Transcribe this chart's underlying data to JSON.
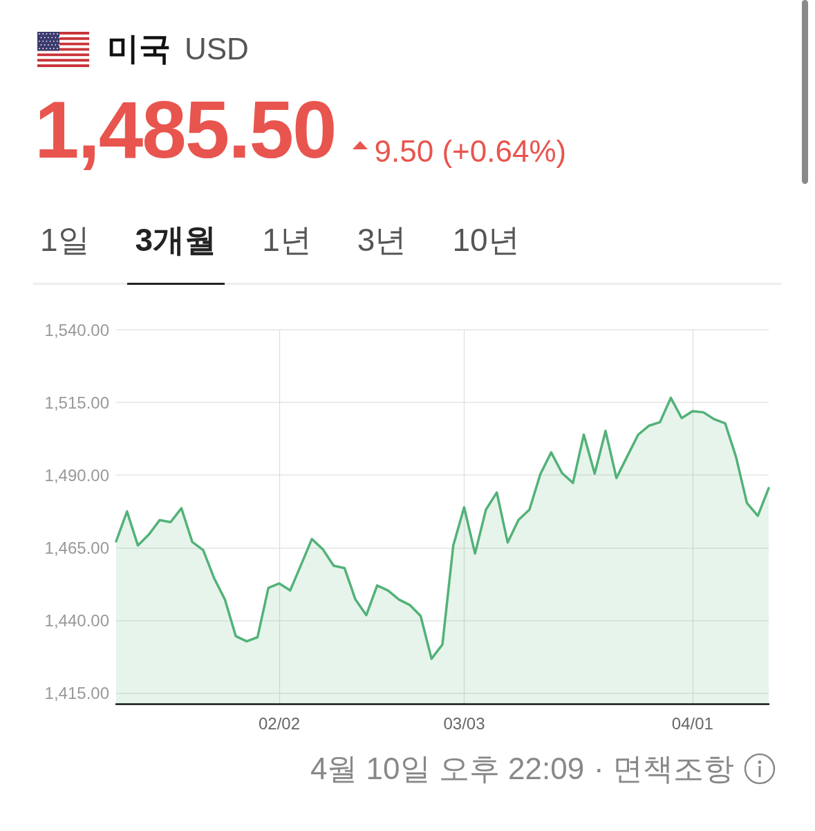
{
  "chart_data": {
    "type": "area",
    "title": "미국",
    "subtitle": "USD",
    "categories": [
      null,
      null,
      null,
      null,
      null,
      null,
      null,
      null,
      null,
      null,
      null,
      null,
      null,
      null,
      null,
      "02/02",
      null,
      null,
      null,
      null,
      null,
      null,
      null,
      null,
      null,
      null,
      null,
      null,
      null,
      null,
      null,
      null,
      "03/03",
      null,
      null,
      null,
      null,
      null,
      null,
      null,
      null,
      null,
      null,
      null,
      null,
      null,
      null,
      null,
      null,
      null,
      null,
      null,
      null,
      "04/01",
      null,
      null,
      null,
      null,
      null,
      null,
      null
    ],
    "values": [
      1467.2,
      1477.5,
      1465.8,
      1469.5,
      1474.5,
      1473.8,
      1478.6,
      1467.0,
      1464.2,
      1454.6,
      1447.2,
      1434.6,
      1432.8,
      1434.2,
      1451.2,
      1452.7,
      1450.3,
      1459.1,
      1468.0,
      1464.5,
      1458.8,
      1458.0,
      1447.2,
      1441.8,
      1452.0,
      1450.3,
      1447.2,
      1445.3,
      1441.5,
      1426.8,
      1431.7,
      1465.8,
      1478.9,
      1463.0,
      1478.1,
      1484.0,
      1466.8,
      1474.6,
      1478.1,
      1490.3,
      1497.8,
      1490.7,
      1487.3,
      1503.9,
      1490.5,
      1505.2,
      1489.0,
      1496.5,
      1503.9,
      1507.0,
      1508.2,
      1516.6,
      1509.6,
      1512.0,
      1511.6,
      1509.2,
      1507.8,
      1496.2,
      1480.4,
      1476.0,
      1485.5
    ],
    "color": "#52b278",
    "ylim": [
      1411.3,
      1540
    ],
    "yticks": [
      {
        "value": 1415,
        "label": "1,415.00"
      },
      {
        "value": 1440,
        "label": "1,440.00"
      },
      {
        "value": 1465,
        "label": "1,465.00"
      },
      {
        "value": 1490,
        "label": "1,490.00"
      },
      {
        "value": 1515,
        "label": "1,515.00"
      },
      {
        "value": 1540,
        "label": "1,540.00"
      }
    ],
    "grid": true,
    "annotations": [
      "1,485.50",
      "9.50 (+0.64%)",
      "1일",
      "3개월",
      "1년",
      "3년",
      "10년",
      "4월 10일 오후 22:09",
      "· 면책조항"
    ]
  }
}
